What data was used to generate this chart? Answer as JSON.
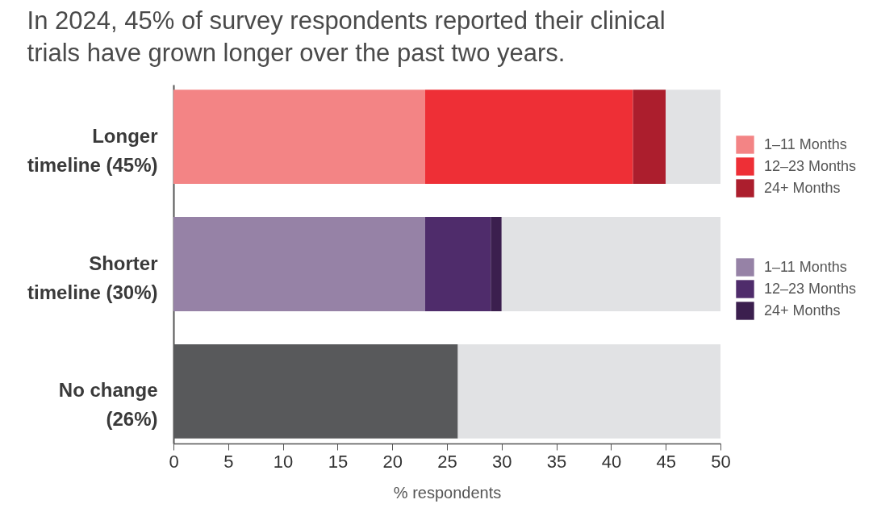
{
  "chart_data": {
    "type": "bar",
    "orientation": "horizontal",
    "stacked": true,
    "title": "In 2024, 45% of survey respondents reported their clinical trials have grown longer over the past two years.",
    "xlabel": "% respondents",
    "categories": [
      "Longer timeline (45%)",
      "Shorter timeline (30%)",
      "No change (26%)"
    ],
    "series": [
      {
        "name": "1–11 Months",
        "color": "#f38485",
        "values": [
          23,
          null,
          null
        ]
      },
      {
        "name": "12–23 Months",
        "color": "#ee2f36",
        "values": [
          19,
          null,
          null
        ]
      },
      {
        "name": "24+ Months",
        "color": "#ac1e2d",
        "values": [
          3,
          null,
          null
        ]
      },
      {
        "name": "1–11 Months",
        "color": "#9682a6",
        "values": [
          null,
          23,
          null
        ]
      },
      {
        "name": "12–23 Months",
        "color": "#4f2c6b",
        "values": [
          null,
          6,
          null
        ]
      },
      {
        "name": "24+ Months",
        "color": "#3b1f4e",
        "values": [
          null,
          1,
          null
        ]
      },
      {
        "color": "#58595b",
        "values": [
          null,
          null,
          26
        ]
      },
      {
        "color": "#e1e2e4",
        "values": [
          5,
          20,
          24
        ]
      }
    ],
    "xlim": [
      0,
      50
    ],
    "xticks": [
      0,
      5,
      10,
      15,
      20,
      25,
      30,
      35,
      40,
      45,
      50
    ],
    "legend": "right",
    "grid": false
  }
}
